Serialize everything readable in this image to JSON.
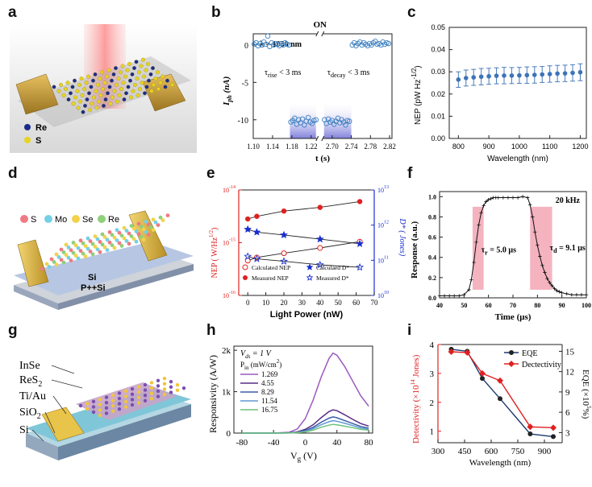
{
  "panels": {
    "a": "a",
    "b": "b",
    "c": "c",
    "d": "d",
    "e": "e",
    "f": "f",
    "g": "g",
    "h": "h",
    "i": "i"
  },
  "illustrations": {
    "a": {
      "legend": [
        "Re",
        "S"
      ],
      "colors": {
        "Re": "#1b2b8a",
        "S": "#e7d41f"
      }
    },
    "d": {
      "legend": [
        "S",
        "Mo",
        "Se",
        "Re"
      ],
      "labels": [
        "Si",
        "P++Si"
      ]
    },
    "g": {
      "labels": [
        "InSe",
        "ReS",
        "2",
        "Ti/Au",
        "SiO",
        "2",
        "Si"
      ]
    }
  },
  "chart_data": [
    {
      "id": "b",
      "type": "line",
      "title": "ON",
      "xlabel": "t (s)",
      "ylabel": "I",
      "ylabel_sub": "ph",
      "ylabel_unit": "(nA)",
      "ylim": [
        -12.5,
        1.5
      ],
      "yticks": [
        "0",
        "-5",
        "-10"
      ],
      "xticks": [
        "1.10",
        "1.14",
        "1.18",
        "1.22",
        "2.70",
        "2.74",
        "2.78",
        "2.82"
      ],
      "annotations": {
        "wavelength": "λ = 1050 nm",
        "rise": "τ",
        "rise_sub": "rise",
        "rise_text": " < 3 ms",
        "decay": "τ",
        "decay_sub": "decay",
        "decay_text": " < 3 ms"
      },
      "series": [
        {
          "name": "off-left",
          "x": [
            1.102,
            1.106,
            1.11,
            1.114,
            1.118,
            1.122,
            1.126,
            1.13,
            1.134,
            1.138,
            1.142,
            1.146,
            1.15,
            1.154,
            1.158,
            1.162,
            1.166,
            1.17,
            1.174
          ],
          "y": [
            0.1,
            0.3,
            -0.1,
            0.2,
            0.0,
            0.4,
            0.1,
            1.2,
            -0.2,
            0.3,
            0.0,
            0.2,
            0.1,
            -0.1,
            0.2,
            0.0,
            0.3,
            0.1,
            0.0
          ]
        },
        {
          "name": "on-left",
          "x": [
            1.178,
            1.182,
            1.186,
            1.19,
            1.194,
            1.198,
            1.202,
            1.206,
            1.21,
            1.214,
            1.218,
            1.222,
            1.226,
            1.23
          ],
          "y": [
            -10.3,
            -10.1,
            -9.8,
            -10.6,
            -10.0,
            -10.4,
            -9.9,
            -10.7,
            -10.2,
            -9.7,
            -10.3,
            -10.5,
            -10.1,
            -10.0
          ]
        },
        {
          "name": "on-right",
          "x": [
            2.684,
            2.688,
            2.692,
            2.696,
            2.7,
            2.704,
            2.708,
            2.712,
            2.716,
            2.72,
            2.724,
            2.728,
            2.732,
            2.736
          ],
          "y": [
            -10.0,
            -10.5,
            -9.9,
            -10.3,
            -10.1,
            -10.6,
            -10.2,
            -9.8,
            -10.4,
            -10.0,
            -10.3,
            -10.7,
            -10.1,
            -10.2
          ]
        },
        {
          "name": "off-right",
          "x": [
            2.742,
            2.746,
            2.75,
            2.754,
            2.758,
            2.762,
            2.766,
            2.77,
            2.774,
            2.778,
            2.782,
            2.786,
            2.79,
            2.794,
            2.798,
            2.802,
            2.806,
            2.81,
            2.814,
            2.818
          ],
          "y": [
            0.0,
            0.3,
            -0.1,
            0.2,
            0.4,
            0.0,
            0.3,
            0.1,
            -0.1,
            0.2,
            0.0,
            0.3,
            0.5,
            0.1,
            0.2,
            0.0,
            0.4,
            0.1,
            0.3,
            0.2
          ]
        }
      ]
    },
    {
      "id": "c",
      "type": "scatter",
      "xlabel": "Wavelength (nm)",
      "ylabel": "NEP (pW Hz",
      "ylabel_sup": "-1/2",
      "ylabel_end": ")",
      "xlim": [
        770,
        1220
      ],
      "ylim": [
        0.0,
        0.05
      ],
      "xticks": [
        800,
        900,
        1000,
        1100,
        1200
      ],
      "yticks": [
        "0.00",
        "0.01",
        "0.02",
        "0.03",
        "0.04",
        "0.05"
      ],
      "x": [
        800,
        825,
        850,
        875,
        900,
        925,
        950,
        975,
        1000,
        1025,
        1050,
        1075,
        1100,
        1125,
        1150,
        1175,
        1200
      ],
      "y": [
        0.0265,
        0.0272,
        0.0275,
        0.0278,
        0.028,
        0.0282,
        0.0283,
        0.0283,
        0.0284,
        0.0285,
        0.0286,
        0.0288,
        0.029,
        0.0292,
        0.0293,
        0.0295,
        0.0298
      ],
      "err": [
        0.0035,
        0.0036,
        0.0036,
        0.0037,
        0.0036,
        0.0036,
        0.0037,
        0.0036,
        0.0036,
        0.0037,
        0.0037,
        0.0036,
        0.0037,
        0.0037,
        0.0037,
        0.0037,
        0.0038
      ]
    },
    {
      "id": "e",
      "type": "line",
      "xlabel": "Light Power (nW)",
      "ylabel_left": "NEP ( W/Hz",
      "ylabel_left_sup": "1/2",
      "ylabel_left_end": ")",
      "ylabel_right": "D* ( Jones)",
      "xlim": [
        -5,
        70
      ],
      "xticks": [
        0,
        10,
        20,
        30,
        40,
        50,
        60,
        70
      ],
      "ylim_left_exp": [
        -16,
        -14
      ],
      "ylim_right_exp": [
        10,
        13
      ],
      "left_ticks": [
        "10",
        "10",
        "10"
      ],
      "left_tick_exps": [
        "-14",
        "-15",
        "-16"
      ],
      "right_ticks": [
        "10",
        "10",
        "10",
        "10"
      ],
      "right_tick_exps": [
        "13",
        "12",
        "11",
        "10"
      ],
      "series": [
        {
          "name": "Calculated NEP",
          "axis": "left",
          "marker": "open-circle",
          "color": "#e02020",
          "x": [
            0,
            5,
            20,
            40,
            62
          ],
          "y_log": [
            -15.34,
            -15.28,
            -15.2,
            -15.1,
            -14.98
          ]
        },
        {
          "name": "Measured NEP",
          "axis": "left",
          "marker": "filled-circle",
          "color": "#e02020",
          "x": [
            0,
            5,
            20,
            40,
            62
          ],
          "y_log": [
            -14.55,
            -14.5,
            -14.4,
            -14.33,
            -14.22
          ]
        },
        {
          "name": "Calculaed D*",
          "axis": "right",
          "marker": "filled-star",
          "color": "#1a2fd0",
          "x": [
            0,
            5,
            20,
            40,
            62
          ],
          "y_log": [
            11.88,
            11.8,
            11.72,
            11.6,
            11.47
          ]
        },
        {
          "name": "Measured D*",
          "axis": "right",
          "marker": "open-star",
          "color": "#1a2fd0",
          "x": [
            0,
            5,
            20,
            40,
            62
          ],
          "y_log": [
            11.11,
            11.04,
            10.97,
            10.87,
            10.8
          ]
        }
      ]
    },
    {
      "id": "f",
      "type": "line",
      "xlabel": "Time (μs)",
      "ylabel": "Response (a.u.)",
      "xlim": [
        40,
        100
      ],
      "ylim": [
        0.0,
        1.05
      ],
      "xticks": [
        40,
        50,
        60,
        70,
        80,
        90,
        100
      ],
      "yticks": [
        "0.0",
        "0.2",
        "0.4",
        "0.6",
        "0.8",
        "1.0"
      ],
      "annotations": {
        "freq": "20 kHz",
        "tr": "τ",
        "tr_sub": "r",
        "tr_text": " = 5.0 μs",
        "td": "τ",
        "td_sub": "d",
        "td_text": " = 9.1 μs"
      },
      "x": [
        40,
        42,
        44,
        46,
        48,
        50,
        52,
        53,
        54,
        55,
        56,
        57,
        58,
        59,
        60,
        61,
        62,
        63,
        64,
        66,
        68,
        70,
        72,
        74,
        76,
        77,
        78,
        79,
        80,
        81,
        82,
        83,
        84,
        85,
        86,
        87,
        88,
        89,
        90,
        92,
        94,
        96,
        98,
        100
      ],
      "y": [
        0.02,
        0.02,
        0.02,
        0.02,
        0.02,
        0.03,
        0.08,
        0.18,
        0.35,
        0.55,
        0.72,
        0.84,
        0.91,
        0.95,
        0.97,
        0.98,
        0.99,
        0.99,
        0.99,
        0.99,
        0.99,
        0.99,
        0.99,
        1.0,
        0.99,
        0.92,
        0.8,
        0.65,
        0.52,
        0.41,
        0.32,
        0.25,
        0.19,
        0.15,
        0.12,
        0.09,
        0.07,
        0.06,
        0.05,
        0.04,
        0.03,
        0.03,
        0.03,
        0.03
      ]
    },
    {
      "id": "h",
      "type": "line",
      "xlabel": "V",
      "xlabel_sub": "g",
      "xlabel_end": " (V)",
      "ylabel": "Responsivity (A/W)",
      "xlim": [
        -90,
        85
      ],
      "ylim": [
        0,
        2100
      ],
      "xticks": [
        -80,
        -40,
        0,
        40,
        80
      ],
      "yticks": [
        "0",
        "1k",
        "2k"
      ],
      "legend_title1": "V",
      "legend_title1_sub": "ds",
      "legend_title1_end": "= 1 V",
      "legend_title2": "P",
      "legend_title2_sub": "in",
      "legend_title2_end": " (mW/cm",
      "legend_title2_sup": "2",
      "legend_title2_close": ")",
      "x": [
        -80,
        -60,
        -40,
        -20,
        -10,
        0,
        10,
        20,
        30,
        35,
        40,
        50,
        60,
        70,
        80
      ],
      "series": [
        {
          "name": "1.269",
          "color": "#9b58c0",
          "y": [
            0,
            0,
            0,
            20,
            100,
            350,
            800,
            1350,
            1800,
            1930,
            1880,
            1600,
            1250,
            900,
            650
          ]
        },
        {
          "name": "4.55",
          "color": "#5a2b86",
          "y": [
            0,
            0,
            0,
            5,
            30,
            90,
            200,
            370,
            520,
            560,
            540,
            440,
            330,
            230,
            170
          ]
        },
        {
          "name": "8.29",
          "color": "#3d5da8",
          "y": [
            0,
            0,
            0,
            3,
            20,
            60,
            140,
            260,
            360,
            390,
            370,
            300,
            230,
            160,
            120
          ]
        },
        {
          "name": "11.54",
          "color": "#5f9ad4",
          "y": [
            0,
            0,
            0,
            2,
            15,
            45,
            105,
            200,
            275,
            300,
            285,
            235,
            180,
            125,
            95
          ]
        },
        {
          "name": "16.75",
          "color": "#6ec27a",
          "y": [
            0,
            0,
            0,
            1,
            10,
            30,
            70,
            140,
            190,
            210,
            200,
            165,
            130,
            90,
            70
          ]
        }
      ]
    },
    {
      "id": "i",
      "type": "line",
      "xlabel": "Wavelength (nm)",
      "ylabel_left": "Detectivity (×10",
      "ylabel_left_sup": "14",
      "ylabel_left_end": " Jones)",
      "ylabel_right": "EQE (×10",
      "ylabel_right_sup": "5",
      "ylabel_right_end": "%)",
      "xlim": [
        300,
        1000
      ],
      "xticks": [
        300,
        450,
        600,
        750,
        900
      ],
      "ylim_left": [
        0.6,
        4.0
      ],
      "yticks_left": [
        "1",
        "2",
        "3",
        "4"
      ],
      "ylim_right": [
        1.5,
        16
      ],
      "yticks_right": [
        "3",
        "6",
        "9",
        "12",
        "15"
      ],
      "series": [
        {
          "name": "EQE",
          "axis": "right",
          "color": "#1a3a6e",
          "marker": "black-circle",
          "x": [
            375,
            465,
            550,
            650,
            820,
            950
          ],
          "y": [
            15.3,
            15.0,
            11.0,
            8.0,
            2.8,
            2.4
          ]
        },
        {
          "name": "Dectectivity",
          "axis": "left",
          "color": "#e02020",
          "marker": "red-diamond",
          "x": [
            375,
            465,
            550,
            650,
            820,
            950
          ],
          "y": [
            3.75,
            3.72,
            3.0,
            2.75,
            1.15,
            1.12
          ]
        }
      ]
    }
  ]
}
